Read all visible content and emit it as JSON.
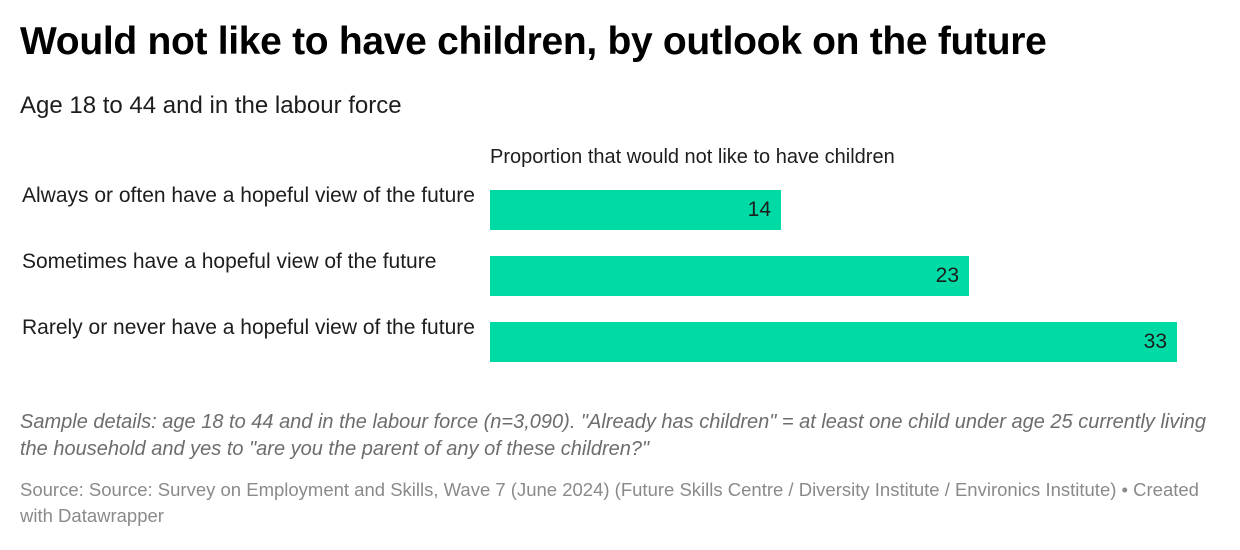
{
  "header": {
    "title": "Would not like to have children, by outlook on the future",
    "subtitle": "Age 18 to 44 and in the labour force"
  },
  "footer": {
    "notes": "Sample details: age 18 to 44 and in the labour force (n=3,090). \"Already has children\" = at least one child under age 25 currently living the household and yes to \"are you the parent of any of these children?\"",
    "source": "Source: Source: Survey on Employment and Skills, Wave 7 (June 2024) (Future Skills Centre / Diversity Institute / Environics Institute) • Created with Datawrapper"
  },
  "colors": {
    "bar": "#00dba6"
  },
  "chart_data": {
    "type": "bar",
    "orientation": "horizontal",
    "column_header": "Proportion that would not like to have children",
    "categories": [
      "Always or often have a hopeful view of the future",
      "Sometimes have a hopeful view of the future",
      "Rarely or never have a hopeful view of the future"
    ],
    "values": [
      14,
      23,
      33
    ],
    "value_labels": [
      "14",
      "23",
      "33"
    ],
    "xlim": [
      0,
      33
    ],
    "grid": false,
    "legend": "none"
  }
}
